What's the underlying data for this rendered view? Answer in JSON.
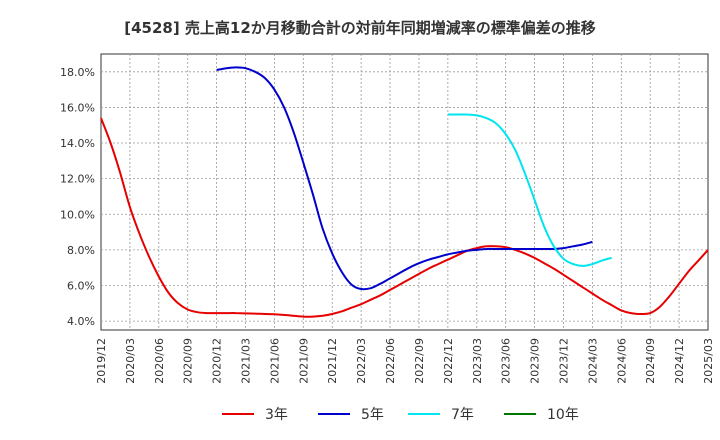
{
  "chart_data": {
    "type": "line",
    "title": "[4528]  売上高12か月移動合計の対前年同期増減率の標準偏差の推移",
    "xlabel": "",
    "ylabel": "",
    "ylim": [
      3.5,
      19.0
    ],
    "yticks": [
      4.0,
      6.0,
      8.0,
      10.0,
      12.0,
      14.0,
      16.0,
      18.0
    ],
    "ytick_labels": [
      "4.0%",
      "6.0%",
      "8.0%",
      "10.0%",
      "12.0%",
      "14.0%",
      "16.0%",
      "18.0%"
    ],
    "xticks": [
      "2019/12",
      "2020/03",
      "2020/06",
      "2020/09",
      "2020/12",
      "2021/03",
      "2021/06",
      "2021/09",
      "2021/12",
      "2022/03",
      "2022/06",
      "2022/09",
      "2022/12",
      "2023/03",
      "2023/06",
      "2023/09",
      "2023/12",
      "2024/03",
      "2024/06",
      "2024/09",
      "2024/12",
      "2025/03"
    ],
    "grid": true,
    "legend_position": "bottom",
    "series": [
      {
        "name": "3年",
        "color": "#e60000",
        "start": "2019/12",
        "values": [
          15.4,
          14.0,
          12.3,
          10.4,
          8.9,
          7.6,
          6.5,
          5.6,
          5.0,
          4.65,
          4.5,
          4.45,
          4.45,
          4.45,
          4.45,
          4.43,
          4.42,
          4.4,
          4.38,
          4.35,
          4.3,
          4.25,
          4.25,
          4.3,
          4.4,
          4.55,
          4.75,
          4.95,
          5.2,
          5.45,
          5.75,
          6.05,
          6.35,
          6.65,
          6.95,
          7.2,
          7.45,
          7.7,
          7.95,
          8.1,
          8.2,
          8.2,
          8.15,
          8.0,
          7.8,
          7.55,
          7.25,
          6.95,
          6.6,
          6.25,
          5.9,
          5.55,
          5.2,
          4.9,
          4.6,
          4.45,
          4.4,
          4.45,
          4.8,
          5.4,
          6.1,
          6.8,
          7.4,
          8.0
        ]
      },
      {
        "name": "5年",
        "color": "#0000cc",
        "start": "2020/12",
        "values": [
          18.1,
          18.2,
          18.25,
          18.2,
          18.0,
          17.65,
          17.0,
          16.0,
          14.6,
          12.9,
          11.1,
          9.2,
          7.8,
          6.75,
          6.05,
          5.8,
          5.85,
          6.1,
          6.4,
          6.7,
          7.0,
          7.25,
          7.45,
          7.6,
          7.75,
          7.85,
          7.95,
          8.0,
          8.05,
          8.05,
          8.05,
          8.05,
          8.05,
          8.05,
          8.05,
          8.05,
          8.1,
          8.2,
          8.3,
          8.45
        ]
      },
      {
        "name": "7年",
        "color": "#00e5ee",
        "start": "2022/12",
        "values": [
          15.6,
          15.6,
          15.6,
          15.55,
          15.4,
          15.1,
          14.5,
          13.6,
          12.3,
          10.8,
          9.3,
          8.2,
          7.5,
          7.2,
          7.1,
          7.2,
          7.4,
          7.55
        ]
      },
      {
        "name": "10年",
        "color": "#007700",
        "start": "2024/12",
        "values": []
      }
    ]
  }
}
